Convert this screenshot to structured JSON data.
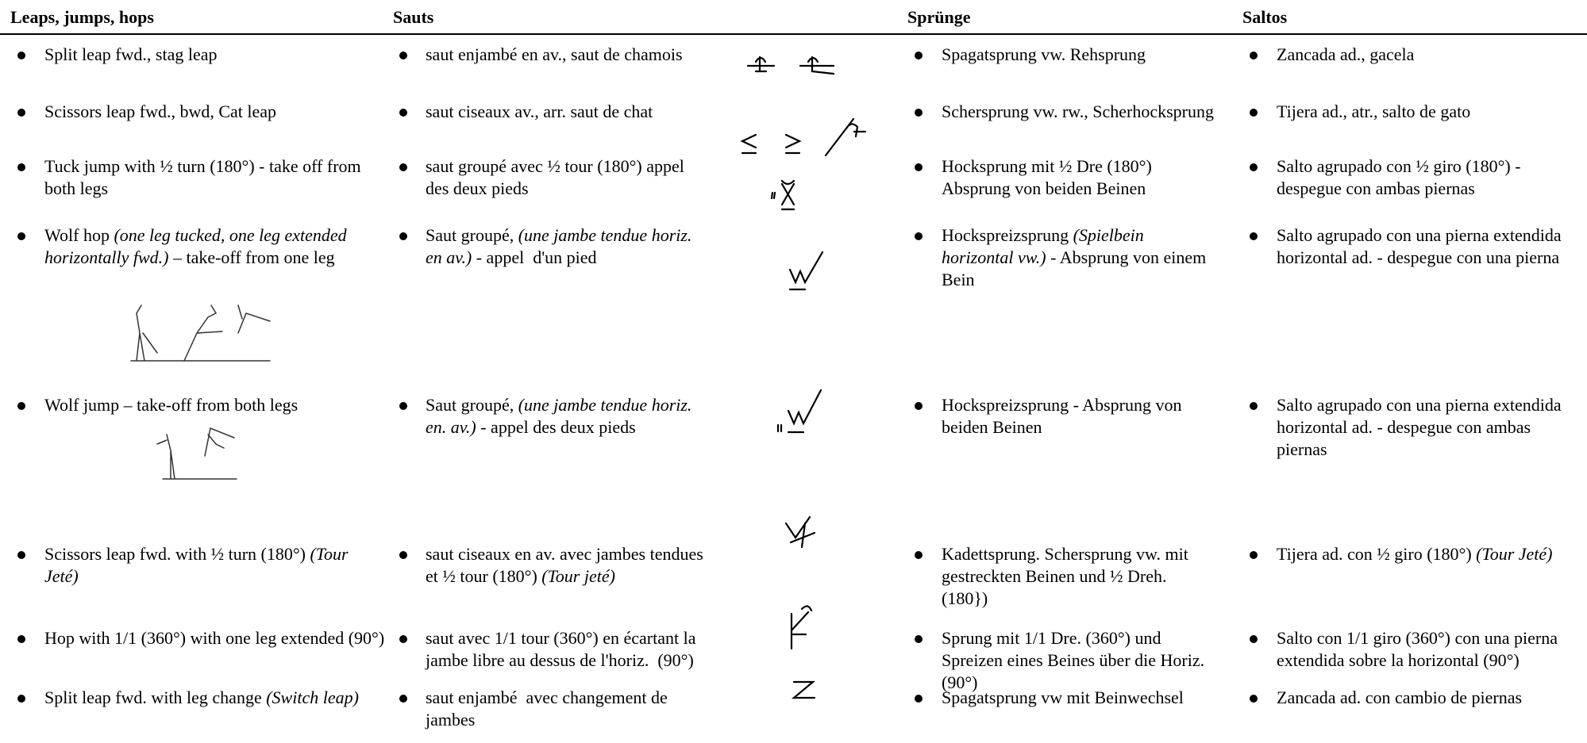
{
  "header": [
    "Leaps, jumps, hops",
    "Sauts",
    "Sprünge",
    "Saltos"
  ],
  "rows": [
    {
      "en": [
        "Split leap fwd., stag leap"
      ],
      "fr": [
        "saut enjambé en av., saut de chamois"
      ],
      "de": [
        "Spagatsprung vw. Rehsprung"
      ],
      "es": [
        "Zancada ad., gacela"
      ]
    },
    {
      "en": [
        "Scissors leap fwd., bwd, Cat leap"
      ],
      "fr": [
        "saut ciseaux av., arr. saut de chat"
      ],
      "de": [
        "Schersprung vw. rw., Scherhocksprung"
      ],
      "es": [
        "Tijera ad., atr., salto de gato"
      ]
    },
    {
      "en": [
        "Tuck jump with ½ turn (180°) - take off from both legs"
      ],
      "fr": [
        "saut groupé avec ½ tour (180°) appel des deux pieds"
      ],
      "de": [
        "Hocksprung mit ½ Dre (180°) Absprung von beiden Beinen"
      ],
      "es": [
        "Salto agrupado con ½ giro (180°) - despegue con ambas piernas"
      ]
    },
    {
      "en": [
        "Wolf hop ",
        {
          "text": "(one leg tucked, one leg extended horizontally fwd.)",
          "italic": true
        },
        " – take-off from one leg"
      ],
      "fr": [
        "Saut groupé, ",
        {
          "text": "(une jambe tendue horiz. en av.)",
          "italic": true
        },
        " - appel  d'un pied"
      ],
      "de": [
        "Hockspreizsprung ",
        {
          "text": "(Spielbein horizontal vw.)",
          "italic": true
        },
        " - Absprung von einem Bein"
      ],
      "es": [
        "Salto agrupado con una pierna extendida horizontal ad. - despegue con una pierna"
      ]
    },
    {
      "en": [
        "Wolf jump – take-off from both legs"
      ],
      "fr": [
        "Saut groupé, ",
        {
          "text": "(une jambe tendue horiz. en. av.)",
          "italic": true
        },
        " - appel des deux pieds"
      ],
      "de": [
        "Hockspreizsprung - Absprung von beiden Beinen"
      ],
      "es": [
        "Salto agrupado con una pierna extendida horizontal ad. - despegue con ambas piernas"
      ]
    },
    {
      "en": [
        "Scissors leap fwd. with ½ turn (180°) ",
        {
          "text": "(Tour Jeté)",
          "italic": true
        }
      ],
      "fr": [
        "saut ciseaux en av. avec jambes tendues et ½ tour (180°) ",
        {
          "text": "(Tour jeté)",
          "italic": true
        }
      ],
      "de": [
        "Kadettsprung. Schersprung vw. mit gestreckten Beinen und ½ Dreh. (180})"
      ],
      "es": [
        "Tijera ad. con ½ giro (180°) ",
        {
          "text": "(Tour Jeté)",
          "italic": true
        }
      ]
    },
    {
      "en": [
        "Hop with 1/1 (360°) with one leg extended (90°)"
      ],
      "fr": [
        "saut avec 1/1 tour (360°) en écartant la jambe libre au dessus de l'horiz.  (90°)"
      ],
      "de": [
        "Sprung mit 1/1 Dre. (360°) und Spreizen eines Beines über die Horiz. (90°)"
      ],
      "es": [
        "Salto con 1/1 giro (360°) con una pierna extendida sobre la horizontal (90°)"
      ]
    },
    {
      "en": [
        "Split leap fwd. with leg change ",
        {
          "text": "(Switch leap)",
          "italic": true
        }
      ],
      "fr": [
        "saut enjambé  avec changement de jambes"
      ],
      "de": [
        "Spagatsprung vw mit Beinwechsel"
      ],
      "es": [
        "Zancada ad. con cambio de piernas"
      ]
    }
  ]
}
